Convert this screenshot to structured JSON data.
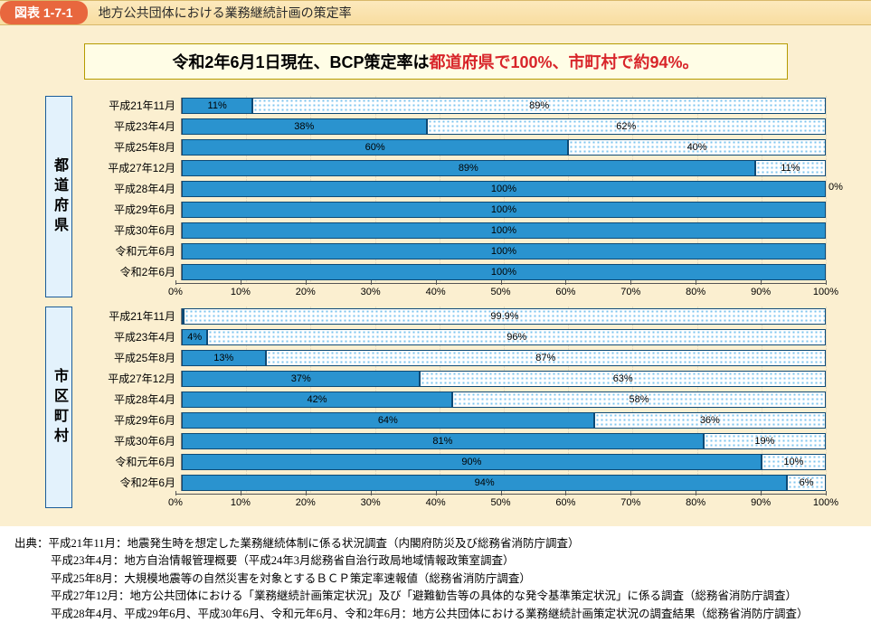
{
  "header": {
    "tag": "図表 1-7-1",
    "title": "地方公共団体における業務継続計画の策定率"
  },
  "callout": {
    "prefix": "令和2年6月1日現在、BCP策定率は",
    "accent": "都道府県で100%、市町村で約94%。"
  },
  "colors": {
    "bar_primary": "#2a93cf",
    "bar_secondary_bg": "#ffffff",
    "bar_secondary_dot": "#7cc4ef",
    "bar_border": "#0e4a75",
    "outer_bg": "#fbefd0",
    "callout_bg": "#fffde6",
    "callout_border": "#b59b00",
    "accent_text": "#d8252a",
    "vert_label_bg": "#e3f2fc",
    "vert_label_border": "#1a5c99",
    "title_bar_top": "#fce9bd",
    "title_bar_bottom": "#f8dda0",
    "tag_bg": "#e8673e"
  },
  "axis": {
    "min": 0,
    "max": 100,
    "step": 10,
    "ticks": [
      "0%",
      "10%",
      "20%",
      "30%",
      "40%",
      "50%",
      "60%",
      "70%",
      "80%",
      "90%",
      "100%"
    ]
  },
  "chart1": {
    "group_label": "都道府県",
    "rows": [
      {
        "label": "平成21年11月",
        "blue": 11,
        "blue_txt": "11%",
        "dot": 89,
        "dot_txt": "89%"
      },
      {
        "label": "平成23年4月",
        "blue": 38,
        "blue_txt": "38%",
        "dot": 62,
        "dot_txt": "62%"
      },
      {
        "label": "平成25年8月",
        "blue": 60,
        "blue_txt": "60%",
        "dot": 40,
        "dot_txt": "40%"
      },
      {
        "label": "平成27年12月",
        "blue": 89,
        "blue_txt": "89%",
        "dot": 11,
        "dot_txt": "11%"
      },
      {
        "label": "平成28年4月",
        "blue": 100,
        "blue_txt": "100%",
        "dot": 0,
        "dot_txt": "0%",
        "dot_outside": true
      },
      {
        "label": "平成29年6月",
        "blue": 100,
        "blue_txt": "100%",
        "dot": 0,
        "dot_txt": ""
      },
      {
        "label": "平成30年6月",
        "blue": 100,
        "blue_txt": "100%",
        "dot": 0,
        "dot_txt": ""
      },
      {
        "label": "令和元年6月",
        "blue": 100,
        "blue_txt": "100%",
        "dot": 0,
        "dot_txt": ""
      },
      {
        "label": "令和2年6月",
        "blue": 100,
        "blue_txt": "100%",
        "dot": 0,
        "dot_txt": ""
      }
    ]
  },
  "chart2": {
    "group_label": "市区町村",
    "rows": [
      {
        "label": "平成21年11月",
        "blue": 0.1,
        "blue_txt": "0.1%",
        "blue_outside": true,
        "dot": 99.9,
        "dot_txt": "99.9%"
      },
      {
        "label": "平成23年4月",
        "blue": 4,
        "blue_txt": "4%",
        "dot": 96,
        "dot_txt": "96%"
      },
      {
        "label": "平成25年8月",
        "blue": 13,
        "blue_txt": "13%",
        "dot": 87,
        "dot_txt": "87%"
      },
      {
        "label": "平成27年12月",
        "blue": 37,
        "blue_txt": "37%",
        "dot": 63,
        "dot_txt": "63%"
      },
      {
        "label": "平成28年4月",
        "blue": 42,
        "blue_txt": "42%",
        "dot": 58,
        "dot_txt": "58%"
      },
      {
        "label": "平成29年6月",
        "blue": 64,
        "blue_txt": "64%",
        "dot": 36,
        "dot_txt": "36%"
      },
      {
        "label": "平成30年6月",
        "blue": 81,
        "blue_txt": "81%",
        "dot": 19,
        "dot_txt": "19%"
      },
      {
        "label": "令和元年6月",
        "blue": 90,
        "blue_txt": "90%",
        "dot": 10,
        "dot_txt": "10%"
      },
      {
        "label": "令和2年6月",
        "blue": 94,
        "blue_txt": "94%",
        "dot": 6,
        "dot_txt": "6%"
      }
    ]
  },
  "footer": {
    "lines": [
      "出典：平成21年11月：地震発生時を想定した業務継続体制に係る状況調査（内閣府防災及び総務省消防庁調査）",
      "平成23年4月：地方自治情報管理概要（平成24年3月総務省自治行政局地域情報政策室調査）",
      "平成25年8月：大規模地震等の自然災害を対象とするＢＣＰ策定率速報値（総務省消防庁調査）",
      "平成27年12月：地方公共団体における「業務継続計画策定状況」及び「避難勧告等の具体的な発令基準策定状況」に係る調査（総務省消防庁調査）",
      "平成28年4月、平成29年6月、平成30年6月、令和元年6月、令和2年6月：地方公共団体における業務継続計画策定状況の調査結果（総務省消防庁調査）"
    ]
  }
}
